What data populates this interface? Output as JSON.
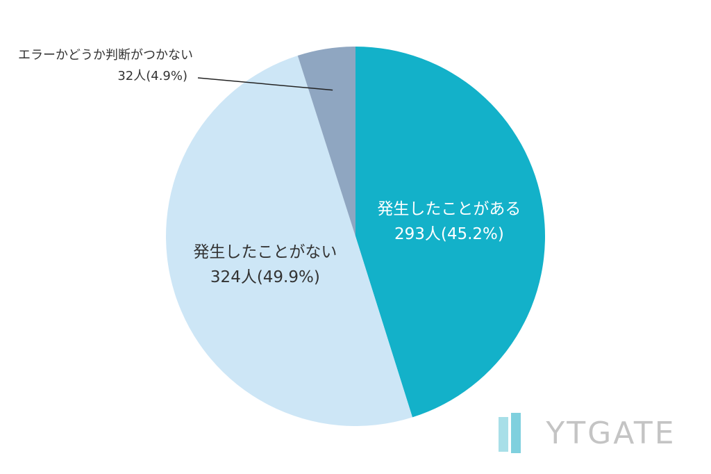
{
  "chart_data": {
    "type": "pie",
    "categories": [
      "発生したことがある",
      "発生したことがない",
      "エラーかどうか判断がつかない"
    ],
    "values": [
      293,
      324,
      32
    ],
    "value_labels": [
      "293人(45.2%)",
      "324人(49.9%)",
      "32人(4.9%)"
    ],
    "colors": [
      "#13b1c9",
      "#cde6f6",
      "#8fa6c1"
    ],
    "label_colors": [
      "#ffffff",
      "#333333",
      "#333333"
    ],
    "start_angle": 0,
    "direction": "clockwise"
  },
  "watermark": "YTGATE"
}
